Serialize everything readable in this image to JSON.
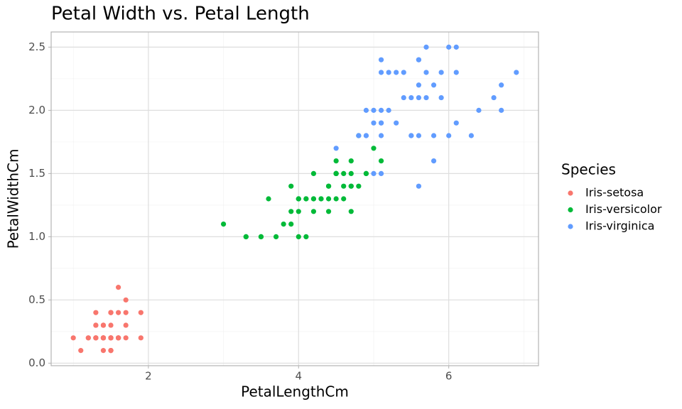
{
  "chart_data": {
    "type": "scatter",
    "title": "Petal Width vs. Petal Length",
    "x_label": "PetalLengthCm",
    "y_label": "PetalWidthCm",
    "legend_title": "Species",
    "legend": "right",
    "grid": true,
    "xlim": [
      0.705,
      7.195
    ],
    "ylim": [
      -0.02,
      2.62
    ],
    "xticks": [
      2,
      4,
      6
    ],
    "yticks": [
      {
        "value": 0,
        "label": "0.0"
      },
      0.5,
      {
        "value": 1,
        "label": "1.0"
      },
      1.5,
      {
        "value": 2,
        "label": "2.0"
      },
      2.5
    ],
    "minor_xticks": [
      1,
      3,
      5,
      7
    ],
    "minor_yticks": [
      0.25,
      0.75,
      1.25,
      1.75,
      2.25
    ],
    "series": [
      {
        "name": "Iris-setosa",
        "color": "#F8766D",
        "x": [
          1.4,
          1.4,
          1.3,
          1.5,
          1.4,
          1.7,
          1.4,
          1.5,
          1.4,
          1.5,
          1.5,
          1.6,
          1.4,
          1.1,
          1.2,
          1.5,
          1.3,
          1.4,
          1.7,
          1.5,
          1.7,
          1.5,
          1.0,
          1.7,
          1.9,
          1.6,
          1.6,
          1.5,
          1.4,
          1.6,
          1.6,
          1.5,
          1.5,
          1.4,
          1.5,
          1.2,
          1.3,
          1.5,
          1.3,
          1.5,
          1.3,
          1.3,
          1.3,
          1.6,
          1.9,
          1.4,
          1.6,
          1.4,
          1.5,
          1.4
        ],
        "values": [
          0.2,
          0.2,
          0.2,
          0.2,
          0.2,
          0.4,
          0.3,
          0.2,
          0.2,
          0.1,
          0.2,
          0.2,
          0.1,
          0.1,
          0.2,
          0.4,
          0.4,
          0.3,
          0.3,
          0.3,
          0.2,
          0.4,
          0.2,
          0.5,
          0.2,
          0.2,
          0.4,
          0.2,
          0.2,
          0.2,
          0.2,
          0.4,
          0.1,
          0.2,
          0.1,
          0.2,
          0.2,
          0.1,
          0.2,
          0.2,
          0.3,
          0.3,
          0.2,
          0.6,
          0.4,
          0.3,
          0.2,
          0.2,
          0.2,
          0.2
        ]
      },
      {
        "name": "Iris-versicolor",
        "color": "#00BA38",
        "x": [
          4.7,
          4.5,
          4.9,
          4.0,
          4.6,
          4.5,
          4.7,
          3.3,
          4.6,
          3.9,
          3.5,
          4.2,
          4.0,
          4.7,
          3.6,
          4.4,
          4.5,
          4.1,
          4.5,
          3.9,
          4.8,
          4.0,
          4.9,
          4.7,
          4.3,
          4.4,
          4.8,
          5.0,
          4.5,
          3.5,
          3.8,
          3.7,
          3.9,
          5.1,
          4.5,
          4.5,
          4.7,
          4.4,
          4.1,
          4.0,
          4.4,
          4.6,
          4.0,
          3.3,
          4.2,
          4.2,
          4.2,
          4.3,
          3.0,
          4.1
        ],
        "values": [
          1.4,
          1.5,
          1.5,
          1.3,
          1.5,
          1.3,
          1.6,
          1.0,
          1.3,
          1.4,
          1.0,
          1.5,
          1.0,
          1.4,
          1.3,
          1.4,
          1.5,
          1.0,
          1.5,
          1.1,
          1.8,
          1.3,
          1.5,
          1.2,
          1.3,
          1.4,
          1.4,
          1.7,
          1.5,
          1.0,
          1.1,
          1.0,
          1.2,
          1.6,
          1.5,
          1.6,
          1.5,
          1.3,
          1.3,
          1.3,
          1.2,
          1.4,
          1.2,
          1.0,
          1.3,
          1.2,
          1.3,
          1.3,
          1.1,
          1.3
        ]
      },
      {
        "name": "Iris-virginica",
        "color": "#619CFF",
        "x": [
          6.0,
          5.1,
          5.9,
          5.6,
          5.8,
          6.6,
          4.5,
          6.3,
          5.8,
          6.1,
          5.1,
          5.3,
          5.5,
          5.0,
          5.1,
          5.3,
          5.5,
          6.7,
          6.9,
          5.0,
          5.7,
          4.9,
          6.7,
          4.9,
          5.7,
          6.0,
          4.8,
          4.9,
          5.6,
          5.8,
          6.1,
          6.4,
          5.6,
          5.1,
          5.6,
          6.1,
          5.6,
          5.5,
          4.8,
          5.4,
          5.6,
          5.1,
          5.1,
          5.9,
          5.7,
          5.2,
          5.0,
          5.2,
          5.4,
          5.1
        ],
        "values": [
          2.5,
          1.9,
          2.1,
          1.8,
          2.2,
          2.1,
          1.7,
          1.8,
          1.8,
          2.5,
          2.0,
          1.9,
          2.1,
          2.0,
          2.4,
          2.3,
          1.8,
          2.2,
          2.3,
          1.5,
          2.3,
          2.0,
          2.0,
          1.8,
          2.1,
          1.8,
          1.8,
          1.8,
          2.1,
          1.6,
          1.9,
          2.0,
          2.2,
          1.5,
          1.4,
          2.3,
          2.4,
          1.8,
          1.8,
          2.1,
          2.4,
          2.3,
          1.9,
          2.3,
          2.5,
          2.3,
          1.9,
          2.0,
          2.3,
          1.8
        ]
      }
    ]
  }
}
